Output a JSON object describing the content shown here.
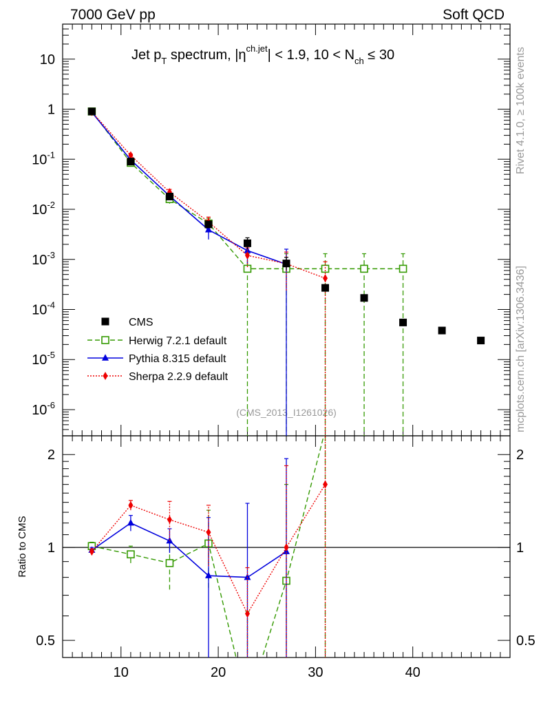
{
  "header": {
    "left": "7000 GeV pp",
    "right": "Soft QCD"
  },
  "side_labels": {
    "top": "Rivet 4.1.0, ≥ 100k events",
    "bottom": "mcplots.cern.ch [arXiv:1306.3436]"
  },
  "title_parts": {
    "a": "Jet p",
    "a_sub": "T",
    "b": " spectrum, |η",
    "b_sup": "ch.jet",
    "c": "| < 1.9, 10 < N",
    "c_sub": "ch",
    "d": " ≤ 30"
  },
  "analysis_tag": "(CMS_2013_I1261026)",
  "ratio_ylabel": "Ratio to CMS",
  "colors": {
    "cms": "#000000",
    "herwig": "#339900",
    "pythia": "#0000dd",
    "sherpa": "#ee0000"
  },
  "chart_data": [
    {
      "type": "scatter",
      "panel": "main",
      "title": "Jet pT spectrum, |eta ch.jet| < 1.9, 10 < Nch <= 30",
      "xlim": [
        4,
        50
      ],
      "ylim": [
        3e-07,
        50
      ],
      "yscale": "log",
      "ytick_values": [
        1e-06,
        1e-05,
        0.0001,
        0.001,
        0.01,
        0.1,
        1,
        10
      ],
      "ytick_labels": [
        {
          "base": "10",
          "exp": "-6"
        },
        {
          "base": "10",
          "exp": "-5"
        },
        {
          "base": "10",
          "exp": "-4"
        },
        {
          "base": "10",
          "exp": "-3"
        },
        {
          "base": "10",
          "exp": "-2"
        },
        {
          "base": "10",
          "exp": "-1"
        },
        {
          "base": "1",
          "exp": ""
        },
        {
          "base": "10",
          "exp": ""
        }
      ],
      "legend_position": "lower-left",
      "series": [
        {
          "key": "cms",
          "name": "CMS",
          "marker": "square-filled",
          "line": "none",
          "points": [
            {
              "x": 7,
              "y": 0.9,
              "lo": 0.87,
              "hi": 0.93
            },
            {
              "x": 11,
              "y": 0.09,
              "lo": 0.085,
              "hi": 0.095
            },
            {
              "x": 15,
              "y": 0.018,
              "lo": 0.016,
              "hi": 0.02
            },
            {
              "x": 19,
              "y": 0.005,
              "lo": 0.0044,
              "hi": 0.0057
            },
            {
              "x": 23,
              "y": 0.0021,
              "lo": 0.0016,
              "hi": 0.0027
            },
            {
              "x": 27,
              "y": 0.00083,
              "lo": 0.0006,
              "hi": 0.0011
            },
            {
              "x": 31,
              "y": 0.00027,
              "lo": 0.00024,
              "hi": 0.0003
            },
            {
              "x": 35,
              "y": 0.00017,
              "lo": 0.00015,
              "hi": 0.00019
            },
            {
              "x": 39,
              "y": 5.5e-05,
              "lo": 5e-05,
              "hi": 6e-05
            },
            {
              "x": 43,
              "y": 3.8e-05,
              "lo": 3.5e-05,
              "hi": 4.1e-05
            },
            {
              "x": 47,
              "y": 2.4e-05,
              "lo": 2.2e-05,
              "hi": 2.6e-05
            }
          ]
        },
        {
          "key": "herwig",
          "name": "Herwig 7.2.1 default",
          "marker": "square-open",
          "line": "dashed",
          "points": [
            {
              "x": 7,
              "y": 0.9,
              "lo": 0.87,
              "hi": 0.93
            },
            {
              "x": 11,
              "y": 0.085,
              "lo": 0.079,
              "hi": 0.091
            },
            {
              "x": 15,
              "y": 0.016,
              "lo": 0.013,
              "hi": 0.019
            },
            {
              "x": 19,
              "y": 0.0052,
              "lo": 0.0042,
              "hi": 0.0066
            },
            {
              "x": 23,
              "y": 0.00065,
              "lo": 1e-09,
              "hi": 0.0013
            },
            {
              "x": 27,
              "y": 0.00065,
              "lo": 1e-09,
              "hi": 0.0013
            },
            {
              "x": 31,
              "y": 0.00065,
              "lo": 1e-09,
              "hi": 0.0013
            },
            {
              "x": 35,
              "y": 0.00065,
              "lo": 1e-09,
              "hi": 0.0013
            },
            {
              "x": 39,
              "y": 0.00065,
              "lo": 1e-09,
              "hi": 0.0013
            }
          ]
        },
        {
          "key": "pythia",
          "name": "Pythia 8.315 default",
          "marker": "triangle-filled",
          "line": "solid",
          "points": [
            {
              "x": 7,
              "y": 0.87,
              "lo": 0.84,
              "hi": 0.9
            },
            {
              "x": 11,
              "y": 0.097,
              "lo": 0.091,
              "hi": 0.103
            },
            {
              "x": 15,
              "y": 0.0185,
              "lo": 0.0165,
              "hi": 0.0205
            },
            {
              "x": 19,
              "y": 0.0039,
              "lo": 0.0025,
              "hi": 0.0055
            },
            {
              "x": 23,
              "y": 0.0015,
              "lo": 0.0008,
              "hi": 0.0023
            },
            {
              "x": 27,
              "y": 0.0008,
              "lo": 1e-09,
              "hi": 0.0016
            }
          ]
        },
        {
          "key": "sherpa",
          "name": "Sherpa 2.2.9 default",
          "marker": "diamond-filled",
          "line": "dotted",
          "points": [
            {
              "x": 7,
              "y": 0.88,
              "lo": 0.85,
              "hi": 0.91
            },
            {
              "x": 11,
              "y": 0.12,
              "lo": 0.113,
              "hi": 0.127
            },
            {
              "x": 15,
              "y": 0.022,
              "lo": 0.019,
              "hi": 0.025
            },
            {
              "x": 19,
              "y": 0.0056,
              "lo": 0.0044,
              "hi": 0.007
            },
            {
              "x": 23,
              "y": 0.0012,
              "lo": 0.0007,
              "hi": 0.0017
            },
            {
              "x": 27,
              "y": 0.00082,
              "lo": 0.00024,
              "hi": 0.0014
            },
            {
              "x": 31,
              "y": 0.00042,
              "lo": 1e-09,
              "hi": 0.0009
            }
          ]
        }
      ]
    },
    {
      "type": "line",
      "panel": "ratio",
      "ylabel": "Ratio to CMS",
      "xlim": [
        4,
        50
      ],
      "ylim": [
        0.44,
        2.3
      ],
      "yscale": "log",
      "xtick_values": [
        10,
        20,
        30,
        40
      ],
      "xtick_labels": [
        "10",
        "20",
        "30",
        "40"
      ],
      "ytick_values": [
        0.5,
        1,
        2
      ],
      "ytick_labels": [
        "0.5",
        "1",
        "2"
      ],
      "reference_line": 1,
      "series": [
        {
          "key": "herwig",
          "name": "Herwig 7.2.1 default",
          "marker": "square-open",
          "line": "dashed",
          "points": [
            {
              "x": 7,
              "y": 1.01,
              "lo": 0.98,
              "hi": 1.04
            },
            {
              "x": 11,
              "y": 0.95,
              "lo": 0.89,
              "hi": 1.01
            },
            {
              "x": 15,
              "y": 0.89,
              "lo": 0.73,
              "hi": 1.05
            },
            {
              "x": 19,
              "y": 1.03,
              "lo": 0.74,
              "hi": 1.32
            },
            {
              "x": 23,
              "y": 0.31,
              "lo": 0.01,
              "hi": 0.62
            },
            {
              "x": 27,
              "y": 0.78,
              "lo": 0.01,
              "hi": 1.6
            },
            {
              "x": 31,
              "y": 2.4,
              "lo": 0.01,
              "hi": 4.8
            }
          ]
        },
        {
          "key": "pythia",
          "name": "Pythia 8.315 default",
          "marker": "triangle-filled",
          "line": "solid",
          "points": [
            {
              "x": 7,
              "y": 0.98,
              "lo": 0.96,
              "hi": 1.0
            },
            {
              "x": 11,
              "y": 1.2,
              "lo": 1.13,
              "hi": 1.27
            },
            {
              "x": 15,
              "y": 1.05,
              "lo": 0.96,
              "hi": 1.15
            },
            {
              "x": 19,
              "y": 0.81,
              "lo": 0.39,
              "hi": 1.25
            },
            {
              "x": 23,
              "y": 0.8,
              "lo": 0.19,
              "hi": 1.39
            },
            {
              "x": 27,
              "y": 0.97,
              "lo": 0.01,
              "hi": 1.94
            }
          ]
        },
        {
          "key": "sherpa",
          "name": "Sherpa 2.2.9 default",
          "marker": "diamond-filled",
          "line": "dotted",
          "points": [
            {
              "x": 7,
              "y": 0.97,
              "lo": 0.95,
              "hi": 0.99
            },
            {
              "x": 11,
              "y": 1.37,
              "lo": 1.32,
              "hi": 1.42
            },
            {
              "x": 15,
              "y": 1.23,
              "lo": 1.05,
              "hi": 1.41
            },
            {
              "x": 19,
              "y": 1.12,
              "lo": 0.87,
              "hi": 1.37
            },
            {
              "x": 23,
              "y": 0.61,
              "lo": 0.36,
              "hi": 0.86
            },
            {
              "x": 27,
              "y": 1.0,
              "lo": 0.16,
              "hi": 1.84
            },
            {
              "x": 31,
              "y": 1.6,
              "lo": 0.01,
              "hi": 3.3
            }
          ]
        }
      ]
    }
  ]
}
